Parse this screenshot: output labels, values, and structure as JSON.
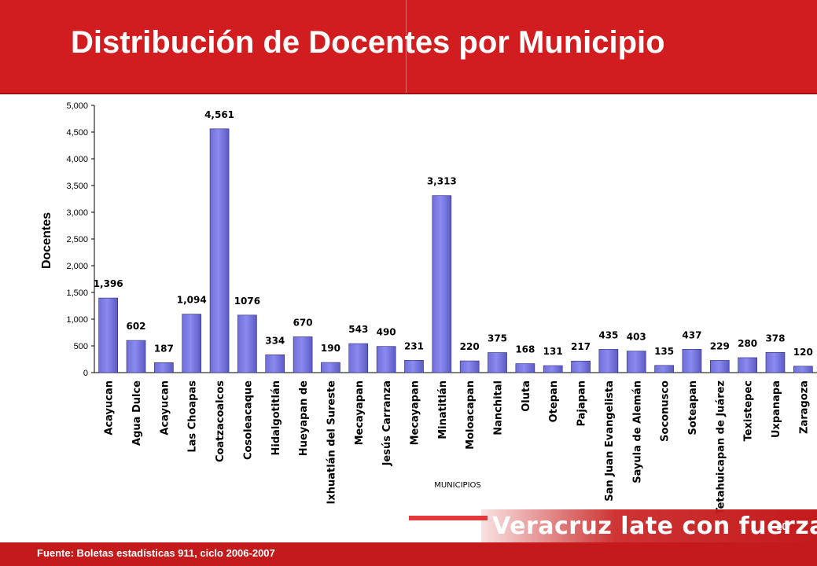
{
  "slide": {
    "title": "Distribución de Docentes por Municipio",
    "source": "Fuente: Boletas estadísticas 911, ciclo 2006-2007",
    "slogan": "Veracruz late con fuerza",
    "page_number": "10"
  },
  "colors": {
    "header": "#d11d1f",
    "bar": "#8a8af0",
    "bar_edge": "#2b2b6e",
    "footer": "#c41a1c"
  },
  "chart_data": {
    "type": "bar",
    "title": "",
    "xlabel": "MUNICIPIOS",
    "ylabel": "Docentes",
    "ylim": [
      0,
      5000
    ],
    "ytick_values": [
      0,
      500,
      1000,
      1500,
      2000,
      2500,
      3000,
      3500,
      4000,
      4500,
      5000
    ],
    "yticks": [
      "0",
      "500",
      "1,000",
      "1,500",
      "2,000",
      "2,500",
      "3,000",
      "3,500",
      "4,000",
      "4,500",
      "5,000"
    ],
    "grid": false,
    "legend": "none",
    "categories": [
      "Acayucan",
      "Agua Dulce",
      "Acayucan",
      "Las Choapas",
      "Coatzacoalcos",
      "Cosoleacaque",
      "Hidalgotitlán",
      "Hueyapan de",
      "Ixhuatlán del Sureste",
      "Mecayapan",
      "Jesús Carranza",
      "Mecayapan",
      "Minatitlán",
      "Moloacapan",
      "Nanchital",
      "Oluta",
      "Otepan",
      "Pajapan",
      "San Juan Evangelista",
      "Sayula de Alemán",
      "Soconusco",
      "Soteapan",
      "Tetahuicapan de Juárez",
      "Texistepec",
      "Uxpanapa",
      "Zaragoza"
    ],
    "values": [
      1396,
      602,
      187,
      1094,
      4561,
      1076,
      334,
      670,
      190,
      543,
      490,
      231,
      3313,
      220,
      375,
      168,
      131,
      217,
      435,
      403,
      135,
      437,
      229,
      280,
      378,
      120
    ],
    "value_labels": [
      "1,396",
      "602",
      "187",
      "1,094",
      "4,561",
      "1076",
      "334",
      "670",
      "190",
      "543",
      "490",
      "231",
      "3,313",
      "220",
      "375",
      "168",
      "131",
      "217",
      "435",
      "403",
      "135",
      "437",
      "229",
      "280",
      "378",
      "120"
    ]
  }
}
